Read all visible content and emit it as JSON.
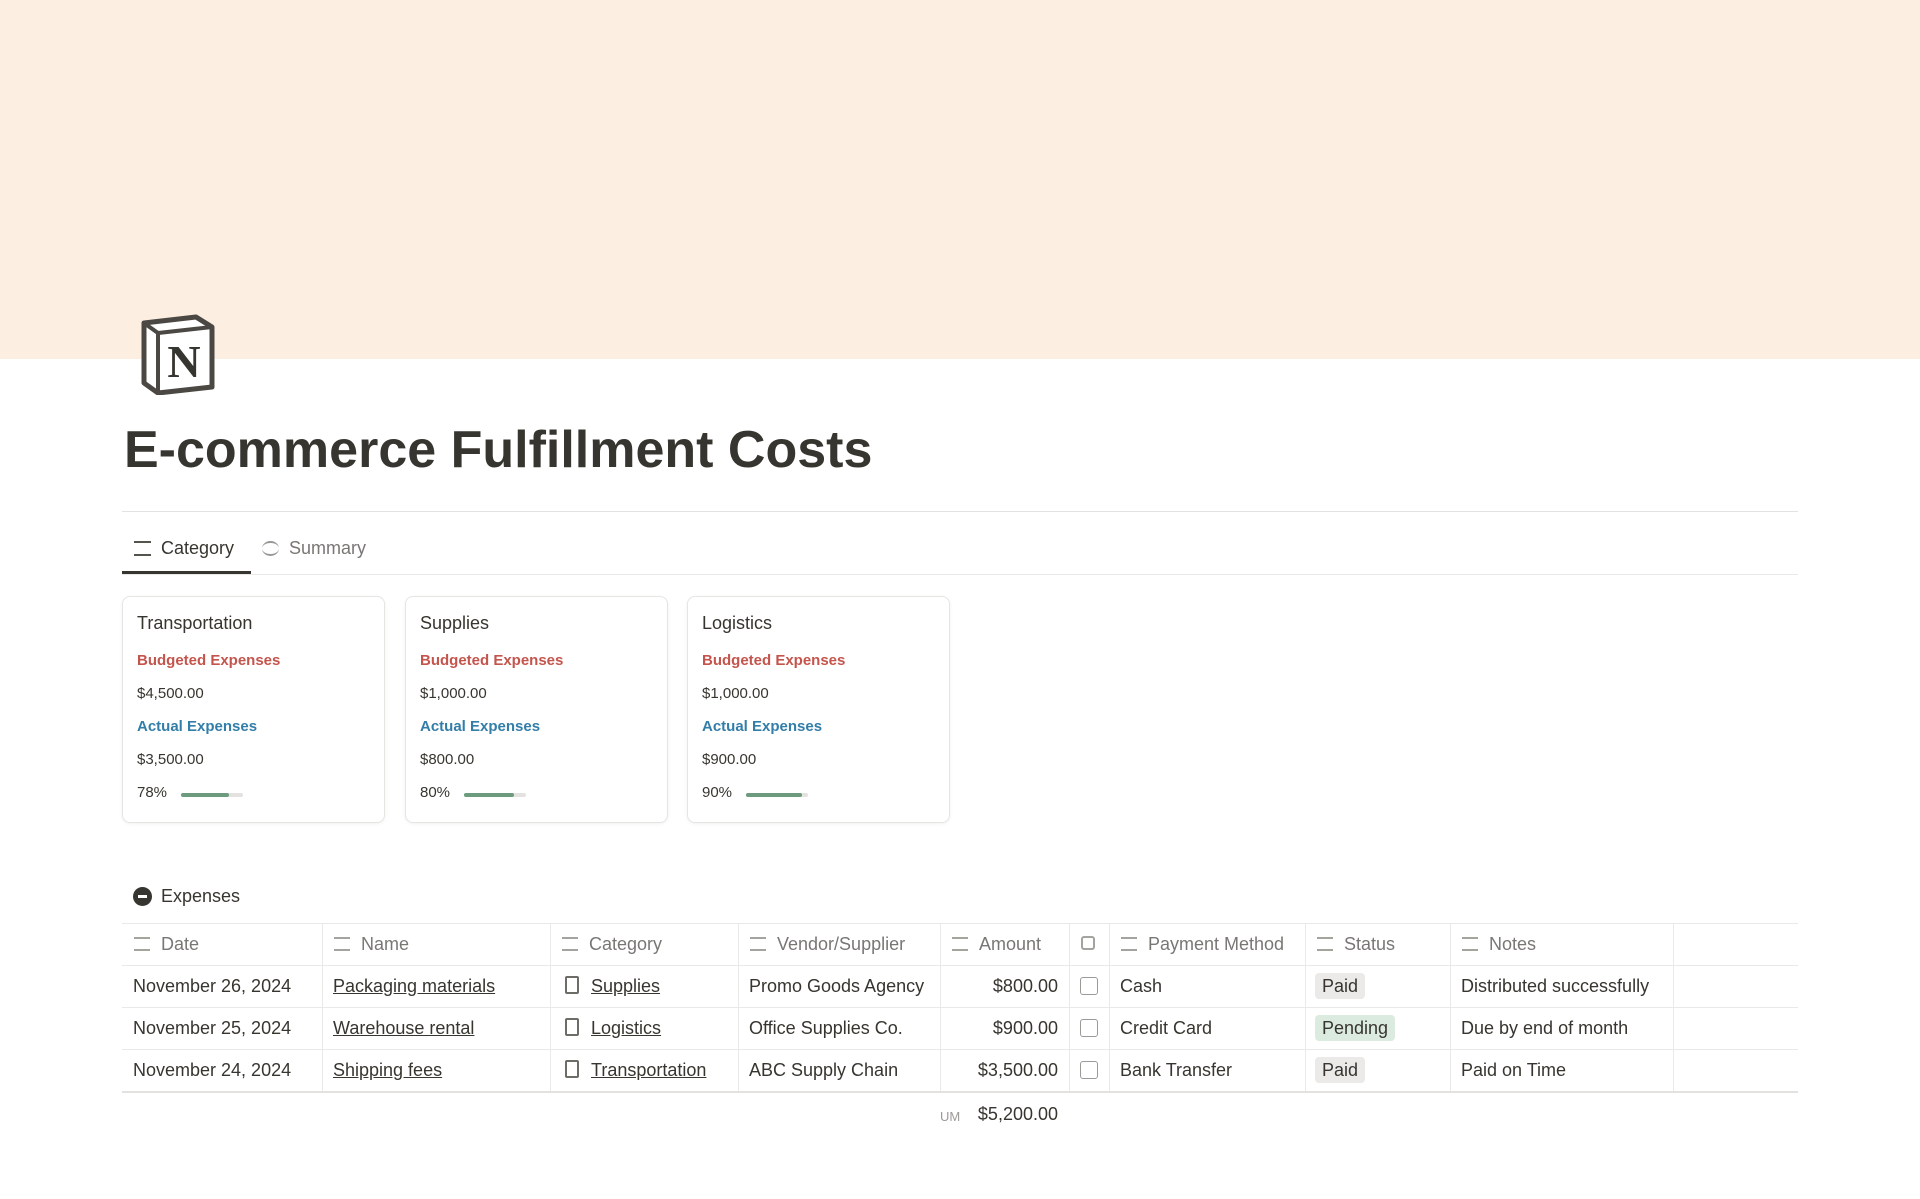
{
  "page": {
    "title": "E-commerce Fulfillment Costs"
  },
  "tabs": [
    "Category",
    "Summary"
  ],
  "cards": [
    {
      "name": "Transportation",
      "budget_label": "Budgeted Expenses",
      "budget": "$4,500.00",
      "actual_label": "Actual Expenses",
      "actual": "$3,500.00",
      "progress": 78,
      "progress_label": "78%"
    },
    {
      "name": "Supplies",
      "budget_label": "Budgeted Expenses",
      "budget": "$1,000.00",
      "actual_label": "Actual Expenses",
      "actual": "$800.00",
      "progress": 80,
      "progress_label": "80%"
    },
    {
      "name": "Logistics",
      "budget_label": "Budgeted Expenses",
      "budget": "$1,000.00",
      "actual_label": "Actual Expenses",
      "actual": "$900.00",
      "progress": 90,
      "progress_label": "90%"
    }
  ],
  "table": {
    "title": "Expenses",
    "columns": [
      "Date",
      "Name",
      "Category",
      "Vendor/Supplier",
      "Amount",
      "Payment Method",
      "Status",
      "Notes"
    ],
    "rows": [
      {
        "date": "November 26, 2024",
        "name": "Packaging materials",
        "category": "Supplies",
        "vendor": "Promo Goods Agency",
        "amount": "$800.00",
        "checked": false,
        "payment": "Cash",
        "status": "Paid",
        "status_color": "#ebeae8",
        "notes": "Distributed successfully"
      },
      {
        "date": "November 25, 2024",
        "name": "Warehouse rental",
        "category": "Logistics",
        "vendor": "Office Supplies Co.",
        "amount": "$900.00",
        "checked": false,
        "payment": "Credit Card",
        "status": "Pending",
        "status_color": "#dcebe0",
        "notes": "Due by end of month"
      },
      {
        "date": "November 24, 2024",
        "name": "Shipping fees",
        "category": "Transportation",
        "vendor": "ABC Supply Chain",
        "amount": "$3,500.00",
        "checked": false,
        "payment": "Bank Transfer",
        "status": "Paid",
        "status_color": "#ebeae8",
        "notes": "Paid on Time"
      }
    ],
    "sum_label": "UM",
    "sum": "$5,200.00"
  }
}
